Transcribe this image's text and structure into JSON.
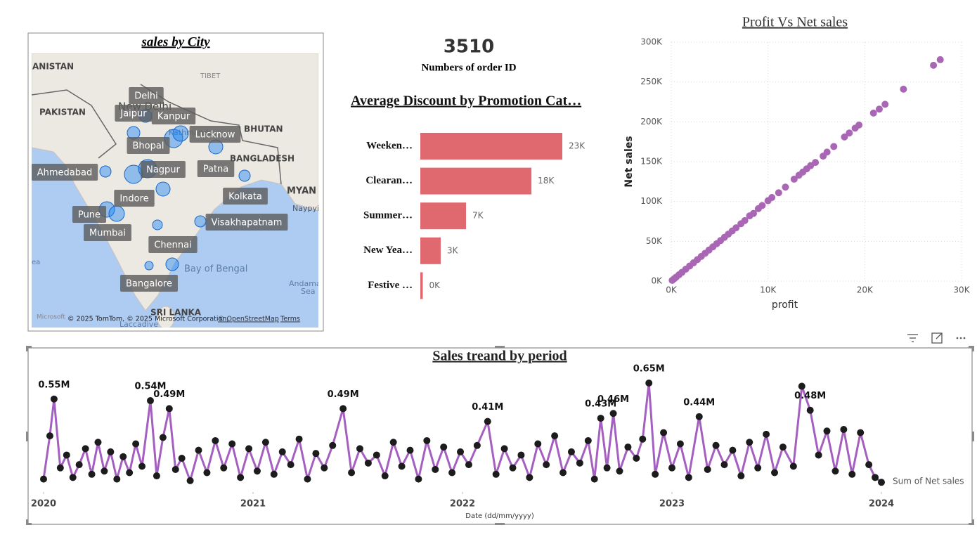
{
  "map": {
    "title": "sales by City",
    "cities": [
      "Delhi",
      "Jaipur",
      "Kanpur",
      "Lucknow",
      "Bhopal",
      "Ahmedabad",
      "Nagpur",
      "Patna",
      "Indore",
      "Kolkata",
      "Pune",
      "Mumbai",
      "Visakhapatnam",
      "Chennai",
      "Bangalore"
    ],
    "places": [
      "ANISTAN",
      "PAKISTAN",
      "TIBET",
      "BHUTAN",
      "BANGLADESH",
      "MYAN",
      "Naypyi",
      "Bay of Bengal",
      "Andaman",
      "Sea",
      "SRI LANKA",
      "Laccadive",
      "ea",
      "New Delhi",
      "Kathmandu"
    ],
    "attribution": [
      "Microsoft",
      "© 2025 TomTom, © 2025 Microsoft Corporation,",
      "© OpenStreetMap",
      "Terms"
    ]
  },
  "card": {
    "value": 3510,
    "label": "Numbers of order ID"
  },
  "chart_data": [
    {
      "type": "bar",
      "title": "Average  Discount by Promotion Cat…",
      "categories": [
        "Weeken…",
        "Clearan…",
        "Summer…",
        "New Yea…",
        "Festive …"
      ],
      "values": [
        23000,
        18000,
        7400,
        3300,
        400
      ],
      "value_labels": [
        "23K",
        "18K",
        "7K",
        "3K",
        "0K"
      ],
      "color": "#e0686f"
    },
    {
      "type": "scatter",
      "title": "Profit Vs Net sales",
      "x_label": "profit",
      "y_label": "Net sales",
      "color": "#a866b5",
      "grid": true,
      "xlim": [
        0,
        30000
      ],
      "ylim": [
        0,
        300000
      ],
      "xticks": [
        {
          "value": 0,
          "label": "0K"
        },
        {
          "value": 10000,
          "label": "10K"
        },
        {
          "value": 20000,
          "label": "20K"
        },
        {
          "value": 30000,
          "label": "30K"
        }
      ],
      "yticks": [
        {
          "value": 0,
          "label": "0K"
        },
        {
          "value": 50000,
          "label": "50K"
        },
        {
          "value": 100000,
          "label": "100K"
        },
        {
          "value": 150000,
          "label": "150K"
        },
        {
          "value": 200000,
          "label": "200K"
        },
        {
          "value": 250000,
          "label": "250K"
        },
        {
          "value": 300000,
          "label": "300K"
        }
      ],
      "x": [
        27800,
        27100,
        24000,
        22100,
        21500,
        20900,
        19400,
        19000,
        18400,
        17900,
        16800,
        16100,
        15700,
        14900,
        14400,
        14000,
        13600,
        13200,
        12700,
        11800,
        11100,
        10400,
        10000,
        9400,
        9000,
        8500,
        8100,
        7600,
        7200,
        6700,
        6300,
        5900,
        5500,
        5100,
        4700,
        4300,
        3900,
        3500,
        3100,
        2700,
        2300,
        1900,
        1500,
        1100,
        800,
        500,
        300,
        100
      ],
      "values": [
        278000,
        271000,
        241000,
        222000,
        216000,
        211000,
        196000,
        192000,
        186000,
        181000,
        169000,
        162000,
        157000,
        149000,
        145000,
        141000,
        137000,
        133000,
        128000,
        118000,
        111000,
        105000,
        101000,
        95000,
        91000,
        85000,
        82000,
        76000,
        72000,
        67000,
        63000,
        59000,
        55000,
        51000,
        47000,
        43000,
        39000,
        35000,
        31000,
        27000,
        23000,
        19000,
        15000,
        11000,
        8000,
        5000,
        3000,
        1000
      ]
    },
    {
      "type": "line",
      "title": "Sales treand by period",
      "x_label": "Date (dd/mm/yyyy)",
      "xlim": [
        2020,
        2024
      ],
      "xticks": [
        2020,
        2021,
        2022,
        2023,
        2024
      ],
      "x": [
        2020.0,
        2020.03,
        2020.05,
        2020.08,
        2020.11,
        2020.14,
        2020.17,
        2020.2,
        2020.23,
        2020.26,
        2020.29,
        2020.32,
        2020.35,
        2020.38,
        2020.41,
        2020.44,
        2020.47,
        2020.51,
        2020.54,
        2020.57,
        2020.6,
        2020.63,
        2020.66,
        2020.7,
        2020.74,
        2020.78,
        2020.82,
        2020.86,
        2020.9,
        2020.94,
        2020.98,
        2021.02,
        2021.06,
        2021.1,
        2021.14,
        2021.18,
        2021.22,
        2021.26,
        2021.3,
        2021.34,
        2021.38,
        2021.43,
        2021.47,
        2021.51,
        2021.55,
        2021.59,
        2021.63,
        2021.67,
        2021.71,
        2021.75,
        2021.79,
        2021.83,
        2021.87,
        2021.91,
        2021.95,
        2021.99,
        2022.03,
        2022.07,
        2022.12,
        2022.16,
        2022.2,
        2022.24,
        2022.28,
        2022.32,
        2022.36,
        2022.4,
        2022.44,
        2022.48,
        2022.52,
        2022.56,
        2022.6,
        2022.63,
        2022.66,
        2022.69,
        2022.72,
        2022.75,
        2022.79,
        2022.83,
        2022.86,
        2022.89,
        2022.92,
        2022.96,
        2023.0,
        2023.04,
        2023.08,
        2023.13,
        2023.17,
        2023.21,
        2023.25,
        2023.29,
        2023.33,
        2023.37,
        2023.41,
        2023.45,
        2023.49,
        2023.53,
        2023.58,
        2023.62,
        2023.66,
        2023.7,
        2023.74,
        2023.78,
        2023.82,
        2023.86,
        2023.9,
        2023.94,
        2023.97,
        2024.0
      ],
      "series": [
        {
          "name": "Sum of Net sales",
          "color": "#a55fc0",
          "marker_color": "#1c1c1c",
          "values": [
            0.05,
            0.32,
            0.55,
            0.12,
            0.2,
            0.06,
            0.14,
            0.24,
            0.08,
            0.28,
            0.1,
            0.22,
            0.05,
            0.19,
            0.09,
            0.27,
            0.13,
            0.54,
            0.07,
            0.31,
            0.49,
            0.11,
            0.18,
            0.04,
            0.23,
            0.09,
            0.29,
            0.12,
            0.27,
            0.06,
            0.24,
            0.1,
            0.28,
            0.08,
            0.22,
            0.14,
            0.3,
            0.05,
            0.21,
            0.12,
            0.26,
            0.49,
            0.09,
            0.24,
            0.15,
            0.2,
            0.07,
            0.28,
            0.13,
            0.23,
            0.05,
            0.29,
            0.11,
            0.25,
            0.09,
            0.22,
            0.14,
            0.26,
            0.41,
            0.08,
            0.24,
            0.12,
            0.2,
            0.06,
            0.27,
            0.14,
            0.32,
            0.09,
            0.22,
            0.15,
            0.29,
            0.05,
            0.43,
            0.12,
            0.46,
            0.1,
            0.25,
            0.18,
            0.3,
            0.65,
            0.08,
            0.34,
            0.12,
            0.27,
            0.06,
            0.44,
            0.11,
            0.26,
            0.14,
            0.23,
            0.07,
            0.28,
            0.12,
            0.33,
            0.09,
            0.25,
            0.13,
            0.63,
            0.48,
            0.2,
            0.35,
            0.1,
            0.36,
            0.08,
            0.34,
            0.14,
            0.06,
            0.03
          ],
          "value_labels": [
            null,
            null,
            "0.55M",
            null,
            null,
            null,
            null,
            null,
            null,
            null,
            null,
            null,
            null,
            null,
            null,
            null,
            null,
            "0.54M",
            null,
            null,
            "0.49M",
            null,
            null,
            null,
            null,
            null,
            null,
            null,
            null,
            null,
            null,
            null,
            null,
            null,
            null,
            null,
            null,
            null,
            null,
            null,
            null,
            "0.49M",
            null,
            null,
            null,
            null,
            null,
            null,
            null,
            null,
            null,
            null,
            null,
            null,
            null,
            null,
            null,
            null,
            "0.41M",
            null,
            null,
            null,
            null,
            null,
            null,
            null,
            null,
            null,
            null,
            null,
            null,
            null,
            "0.43M",
            null,
            "0.46M",
            null,
            null,
            null,
            null,
            "0.65M",
            null,
            null,
            null,
            null,
            null,
            "0.44M",
            null,
            null,
            null,
            null,
            null,
            null,
            null,
            null,
            null,
            null,
            null,
            null,
            "0.48M",
            null,
            null,
            null,
            null,
            null,
            null,
            null,
            null,
            null
          ]
        }
      ]
    }
  ]
}
